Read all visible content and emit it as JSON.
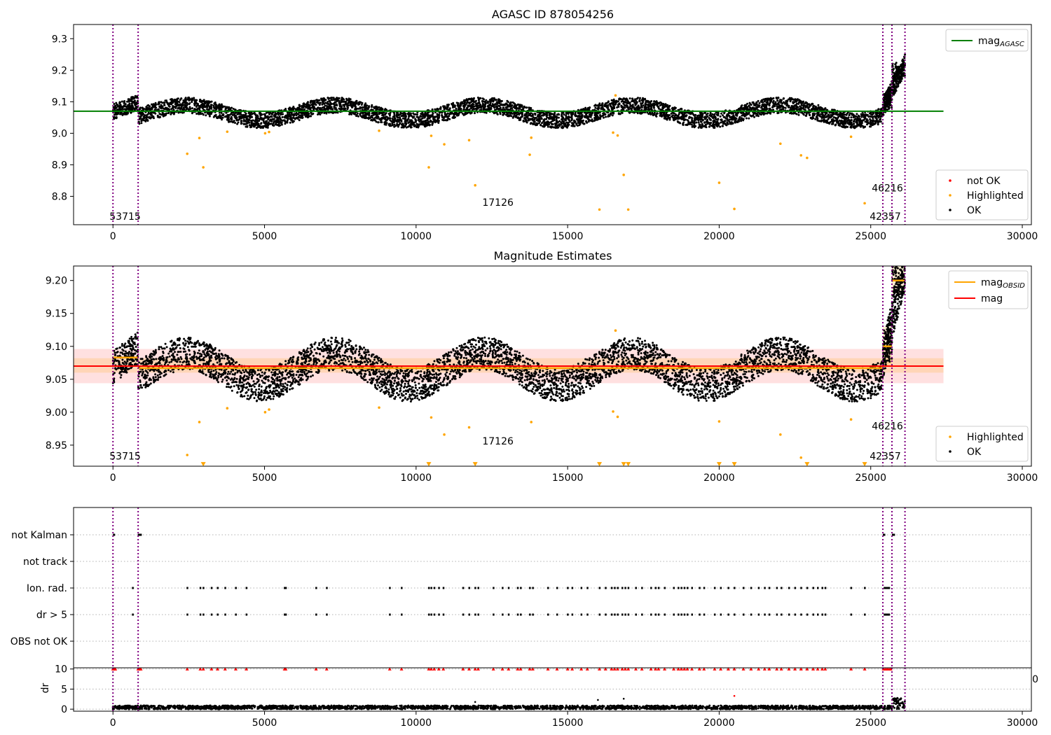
{
  "chart_data": [
    {
      "type": "scatter",
      "title": "AGASC ID 878054256",
      "xlim": [
        -1300,
        30300
      ],
      "ylim": [
        8.71,
        9.345
      ],
      "xticks": [
        0,
        5000,
        10000,
        15000,
        20000,
        25000,
        30000
      ],
      "xtick_labels": [
        "0",
        "5000",
        "10000",
        "15000",
        "20000",
        "25000",
        "30000"
      ],
      "yticks": [
        8.8,
        8.9,
        9.0,
        9.1,
        9.2,
        9.3
      ],
      "ytick_labels": [
        "8.8",
        "8.9",
        "9.0",
        "9.1",
        "9.2",
        "9.3"
      ],
      "vlines": [
        0,
        830,
        25400,
        25700,
        26130
      ],
      "hlines": [
        {
          "name": "mag_AGASC",
          "y": 9.07,
          "x": [
            -1300,
            27400
          ],
          "color": "#008000"
        }
      ],
      "annotations": [
        {
          "text": "53715",
          "x": 400,
          "y": 8.725
        },
        {
          "text": "17126",
          "x": 12700,
          "y": 8.77
        },
        {
          "text": "46216",
          "x": 25550,
          "y": 8.815
        },
        {
          "text": "42357",
          "x": 25480,
          "y": 8.725
        }
      ],
      "legend_position": "top-right",
      "legend": [
        {
          "label": "mag",
          "sub": "AGASC",
          "color": "#008000",
          "marker": "line"
        }
      ],
      "legend2_position": "bottom-right",
      "legend2": [
        {
          "label": "not OK",
          "color": "#ff0000",
          "marker": "dot"
        },
        {
          "label": "Highlighted",
          "color": "#ffa500",
          "marker": "dot"
        },
        {
          "label": "OK",
          "color": "#000000",
          "marker": "dot"
        }
      ],
      "series": [
        {
          "name": "Highlighted",
          "color": "#ffa500",
          "x": [
            2450,
            2850,
            2980,
            3770,
            5020,
            5150,
            8780,
            10420,
            10500,
            10930,
            11750,
            11950,
            13750,
            13800,
            16050,
            16500,
            16580,
            16650,
            16850,
            17000,
            20000,
            20500,
            22020,
            22700,
            22900,
            24350,
            24800
          ],
          "y": [
            8.935,
            8.985,
            8.892,
            9.005,
            9.0,
            9.004,
            9.008,
            8.892,
            8.992,
            8.965,
            8.978,
            8.835,
            8.932,
            8.986,
            8.758,
            9.002,
            9.12,
            8.993,
            8.868,
            8.758,
            8.843,
            8.76,
            8.967,
            8.93,
            8.922,
            8.989,
            8.778
          ]
        }
      ]
    },
    {
      "type": "scatter",
      "title": "Magnitude Estimates",
      "xlim": [
        -1300,
        30300
      ],
      "ylim": [
        8.918,
        9.222
      ],
      "xticks": [
        0,
        5000,
        10000,
        15000,
        20000,
        25000,
        30000
      ],
      "xtick_labels": [
        "0",
        "5000",
        "10000",
        "15000",
        "20000",
        "25000",
        "30000"
      ],
      "yticks": [
        8.95,
        9.0,
        9.05,
        9.1,
        9.15,
        9.2
      ],
      "ytick_labels": [
        "8.95",
        "9.00",
        "9.05",
        "9.10",
        "9.15",
        "9.20"
      ],
      "vlines": [
        0,
        830,
        25400,
        25700,
        26130
      ],
      "hlines": [
        {
          "name": "mag",
          "y": 9.07,
          "x": [
            -1300,
            27400
          ],
          "color": "#ff0000"
        }
      ],
      "bands": [
        {
          "y": [
            9.044,
            9.096
          ],
          "x": [
            -1300,
            27400
          ],
          "color": "#ff0000",
          "opacity": 0.12
        },
        {
          "y": [
            9.06,
            9.082
          ],
          "x": [
            -1300,
            27400
          ],
          "color": "#ffa500",
          "opacity": 0.18
        },
        {
          "y": [
            9.07,
            9.13
          ],
          "x": [
            25400,
            25700
          ],
          "color": "#ffa500",
          "opacity": 0.18
        },
        {
          "y": [
            9.18,
            9.222
          ],
          "x": [
            25700,
            26130
          ],
          "color": "#ffa500",
          "opacity": 0.18
        }
      ],
      "segments": [
        {
          "x": [
            0,
            830
          ],
          "y": 9.083
        },
        {
          "x": [
            830,
            25400
          ],
          "y": 9.067
        },
        {
          "x": [
            25400,
            25700
          ],
          "y": 9.1
        },
        {
          "x": [
            25700,
            26130
          ],
          "y": 9.2
        }
      ],
      "annotations": [
        {
          "text": "53715",
          "x": 400,
          "y": 8.928
        },
        {
          "text": "17126",
          "x": 12700,
          "y": 8.951
        },
        {
          "text": "46216",
          "x": 25550,
          "y": 8.974
        },
        {
          "text": "42357",
          "x": 25480,
          "y": 8.928
        }
      ],
      "legend_position": "top-right",
      "legend": [
        {
          "label": "mag",
          "sub": "OBSID",
          "color": "#ffa500",
          "marker": "line"
        },
        {
          "label": "mag",
          "sub": "",
          "color": "#ff0000",
          "marker": "line"
        }
      ],
      "legend2_position": "bottom-right",
      "legend2": [
        {
          "label": "Highlighted",
          "color": "#ffa500",
          "marker": "dot"
        },
        {
          "label": "OK",
          "color": "#000000",
          "marker": "dot"
        }
      ],
      "series": [
        {
          "name": "Highlighted",
          "color": "#ffa500",
          "x": [
            2450,
            2850,
            3770,
            5020,
            5150,
            8780,
            10500,
            10930,
            11750,
            13800,
            16500,
            16580,
            16650,
            20000,
            22020,
            22700,
            24350
          ],
          "y": [
            8.935,
            8.985,
            9.006,
            9.0,
            9.004,
            9.007,
            8.992,
            8.966,
            8.977,
            8.985,
            9.001,
            9.124,
            8.993,
            8.986,
            8.966,
            8.931,
            8.989
          ]
        },
        {
          "name": "Highlighted clipped",
          "color": "#ffa500",
          "x": [
            2980,
            10420,
            11950,
            16050,
            16850,
            17000,
            20000,
            20500,
            22900,
            24800
          ],
          "y": [
            8.921,
            8.921,
            8.921,
            8.921,
            8.921,
            8.921,
            8.921,
            8.921,
            8.921,
            8.921
          ]
        }
      ]
    },
    {
      "type": "scatter",
      "title": "",
      "xlim": [
        -1300,
        30300
      ],
      "categories": [
        "not Kalman",
        "not track",
        "Ion. rad.",
        "dr > 5",
        "OBS not OK"
      ],
      "vlines": [
        0,
        830,
        25400,
        25700,
        26130
      ],
      "flag_rows": {
        "not Kalman": [
          [
            0,
            60
          ],
          [
            820,
            950
          ],
          [
            25400,
            25480
          ],
          [
            25700,
            25800
          ]
        ],
        "not track": [],
        "Ion. rad.": [
          650,
          2450,
          2880,
          2980,
          3250,
          3450,
          3700,
          4050,
          4400,
          5660,
          5700,
          6700,
          7050,
          9130,
          9520,
          10420,
          10500,
          10600,
          10750,
          10900,
          11550,
          11750,
          11950,
          12050,
          12550,
          12850,
          13050,
          13350,
          13450,
          13750,
          13850,
          14350,
          14650,
          15000,
          15150,
          15450,
          15650,
          16050,
          16250,
          16450,
          16550,
          16650,
          16800,
          16900,
          17000,
          17250,
          17450,
          17750,
          17900,
          18000,
          18200,
          18500,
          18650,
          18750,
          18850,
          18950,
          19100,
          19350,
          19500,
          19850,
          20050,
          20300,
          20500,
          20800,
          21050,
          21300,
          21500,
          21650,
          21900,
          22050,
          22300,
          22500,
          22700,
          22900,
          23100,
          23250,
          23400,
          23500,
          24350,
          24800,
          25450,
          25500,
          25550,
          25600
        ],
        "dr > 5": [
          650,
          2450,
          2880,
          2980,
          3250,
          3450,
          3700,
          4050,
          4400,
          5660,
          5700,
          6700,
          7050,
          9130,
          9520,
          10420,
          10500,
          10600,
          10750,
          10900,
          11550,
          11750,
          11950,
          12050,
          12550,
          12850,
          13050,
          13350,
          13450,
          13750,
          13850,
          14350,
          14650,
          15000,
          15150,
          15450,
          15650,
          16050,
          16250,
          16450,
          16550,
          16650,
          16800,
          16900,
          17000,
          17250,
          17450,
          17750,
          17900,
          18000,
          18200,
          18500,
          18650,
          18750,
          18850,
          18950,
          19100,
          19350,
          19500,
          19850,
          20050,
          20300,
          20500,
          20800,
          21050,
          21300,
          21500,
          21650,
          21900,
          22050,
          22300,
          22500,
          22700,
          22900,
          23100,
          23250,
          23400,
          23500,
          24350,
          24800,
          25450,
          25500,
          25550,
          25600
        ],
        "OBS not OK": []
      }
    },
    {
      "type": "scatter",
      "title": "",
      "xlim": [
        -1300,
        30300
      ],
      "ylim": [
        -0.5,
        10.3
      ],
      "xticks": [
        0,
        5000,
        10000,
        15000,
        20000,
        25000,
        30000
      ],
      "xtick_labels": [
        "0",
        "5000",
        "10000",
        "15000",
        "20000",
        "25000",
        "30000"
      ],
      "yticks": [
        0,
        5,
        10
      ],
      "ytick_labels": [
        "0",
        "5",
        "10"
      ],
      "ylabel": "dr",
      "vlines": [
        0,
        830,
        25400,
        25700,
        26130
      ],
      "overflow_tick_label": "0",
      "series": [
        {
          "name": "clipped dr",
          "color": "#ff0000",
          "x": [
            0,
            40,
            80,
            830,
            870,
            920,
            2450,
            2880,
            2980,
            3250,
            3450,
            3700,
            4050,
            4400,
            5660,
            5700,
            6700,
            7050,
            9130,
            9520,
            10420,
            10500,
            10600,
            10750,
            10900,
            11550,
            11750,
            11950,
            12050,
            12550,
            12850,
            13050,
            13350,
            13450,
            13750,
            13850,
            14350,
            14650,
            15000,
            15150,
            15450,
            15650,
            16050,
            16250,
            16450,
            16550,
            16650,
            16800,
            16900,
            17000,
            17250,
            17450,
            17750,
            17900,
            18000,
            18200,
            18500,
            18650,
            18750,
            18850,
            18950,
            19100,
            19350,
            19500,
            19850,
            20050,
            20300,
            20500,
            20800,
            21050,
            21300,
            21500,
            21650,
            21900,
            22050,
            22300,
            22500,
            22700,
            22900,
            23100,
            23250,
            23400,
            23500,
            24350,
            24800,
            25420,
            25480,
            25540,
            25600,
            25660
          ],
          "y": [
            10,
            10,
            10,
            10,
            10,
            10,
            10,
            10,
            10,
            10,
            10,
            10,
            10,
            10,
            10,
            10,
            10,
            10,
            10,
            10,
            10,
            10,
            10,
            10,
            10,
            10,
            10,
            10,
            10,
            10,
            10,
            10,
            10,
            10,
            10,
            10,
            10,
            10,
            10,
            10,
            10,
            10,
            10,
            10,
            10,
            10,
            10,
            10,
            10,
            10,
            10,
            10,
            10,
            10,
            10,
            10,
            10,
            10,
            10,
            10,
            10,
            10,
            10,
            10,
            10,
            10,
            10,
            10,
            10,
            10,
            10,
            10,
            10,
            10,
            10,
            10,
            10,
            10,
            10,
            10,
            10,
            10,
            10,
            10,
            10,
            10,
            10,
            10,
            10,
            10
          ]
        },
        {
          "name": "large dr",
          "color": "#ff0000",
          "x": [
            20500
          ],
          "y": [
            3.3
          ]
        },
        {
          "name": "OK dr",
          "color": "#000000",
          "x": [
            11950,
            16000,
            16850
          ],
          "y": [
            1.8,
            2.3,
            2.6
          ]
        }
      ]
    }
  ]
}
